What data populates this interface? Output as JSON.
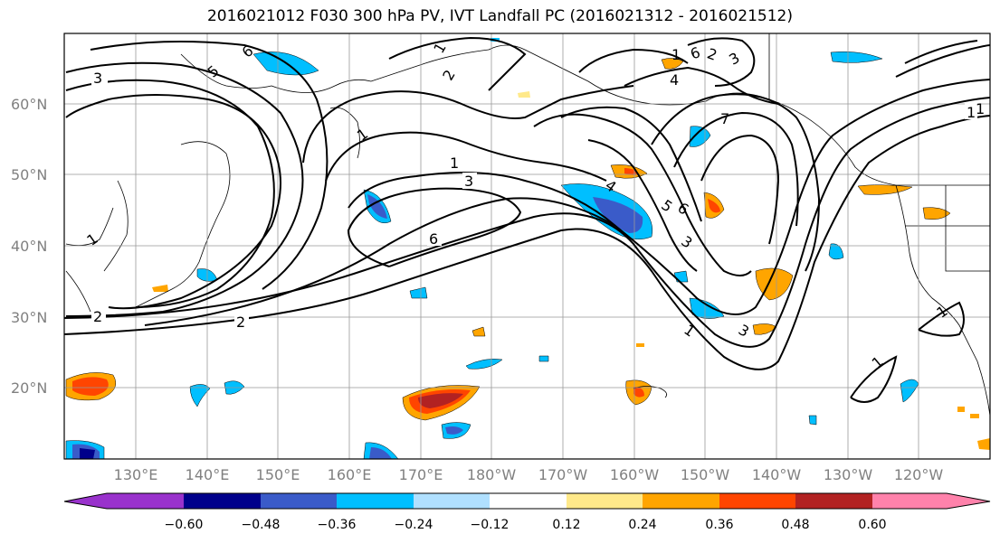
{
  "title": "2016021012 F030 300 hPa PV, IVT Landfall PC (2016021312 - 2016021512)",
  "lat_labels": [
    "60°N",
    "50°N",
    "40°N",
    "30°N",
    "20°N"
  ],
  "lon_labels": [
    "130°E",
    "140°E",
    "150°E",
    "160°E",
    "170°E",
    "180°W",
    "170°W",
    "160°W",
    "150°W",
    "140°W",
    "130°W",
    "120°W"
  ],
  "colorbar": {
    "colors": [
      "#9932CC",
      "#00008B",
      "#3A5BC9",
      "#00BFFF",
      "#B0E0FF",
      "#FFFFFF",
      "#FFE98A",
      "#FFA500",
      "#FF4500",
      "#B22222",
      "#FF82AB"
    ],
    "ticks": [
      "−0.60",
      "−0.48",
      "−0.36",
      "−0.24",
      "−0.12",
      "0.12",
      "0.24",
      "0.36",
      "0.48",
      "0.60"
    ]
  },
  "contour_labels": [
    "3",
    "5",
    "6",
    "1",
    "2",
    "1",
    "3",
    "6",
    "1",
    "4",
    "5",
    "6",
    "3",
    "1",
    "7",
    "6",
    "2",
    "3",
    "4",
    "1",
    "1",
    "2",
    "2",
    "1",
    "1",
    "1",
    "3",
    "1"
  ]
}
